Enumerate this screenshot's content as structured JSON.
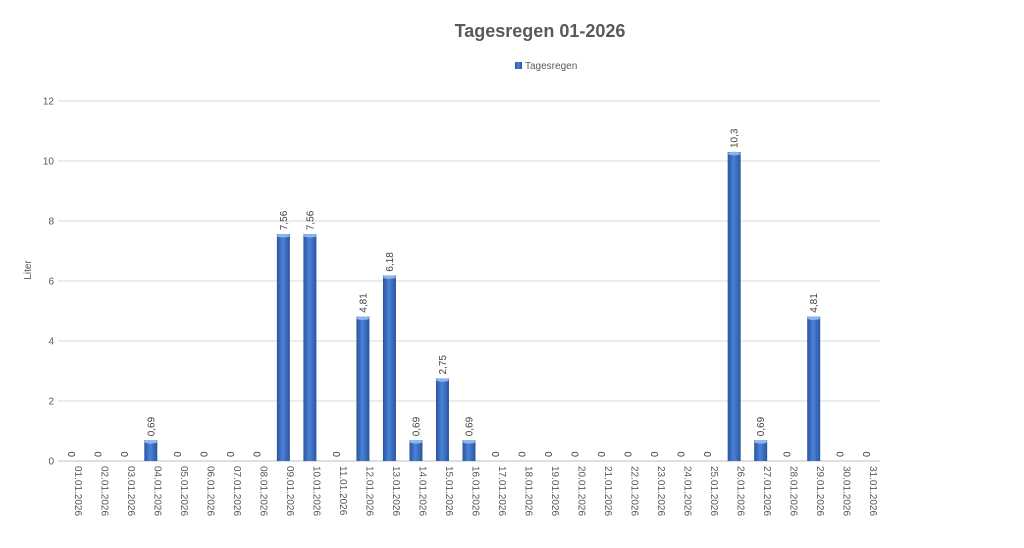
{
  "chart_data": {
    "type": "bar",
    "title": "Tagesregen 01-2026",
    "xlabel": "",
    "ylabel": "Liter",
    "ylim": [
      0,
      12
    ],
    "yticks": [
      "0",
      "2",
      "4",
      "6",
      "8",
      "10",
      "12"
    ],
    "grid": true,
    "legend_position": "top",
    "bar_color": "#3a6fc4",
    "categories": [
      "01.01.2026",
      "02.01.2026",
      "03.01.2026",
      "04.01.2026",
      "05.01.2026",
      "06.01.2026",
      "07.01.2026",
      "08.01.2026",
      "09.01.2026",
      "10.01.2026",
      "11.01.2026",
      "12.01.2026",
      "13.01.2026",
      "14.01.2026",
      "15.01.2026",
      "16.01.2026",
      "17.01.2026",
      "18.01.2026",
      "19.01.2026",
      "20.01.2026",
      "21.01.2026",
      "22.01.2026",
      "23.01.2026",
      "24.01.2026",
      "25.01.2026",
      "26.01.2026",
      "27.01.2026",
      "28.01.2026",
      "29.01.2026",
      "30.01.2026",
      "31.01.2026"
    ],
    "series": [
      {
        "name": "Tagesregen",
        "values": [
          0,
          0,
          0,
          0.69,
          0,
          0,
          0,
          0,
          7.56,
          7.56,
          0,
          4.81,
          6.18,
          0.69,
          2.75,
          0.69,
          0,
          0,
          0,
          0,
          0,
          0,
          0,
          0,
          0,
          10.3,
          0.69,
          0,
          4.81,
          0,
          0
        ],
        "labels": [
          "0",
          "0",
          "0",
          "0,69",
          "0",
          "0",
          "0",
          "0",
          "7,56",
          "7,56",
          "0",
          "4,81",
          "6,18",
          "0,69",
          "2,75",
          "0,69",
          "0",
          "0",
          "0",
          "0",
          "0",
          "0",
          "0",
          "0",
          "0",
          "10,3",
          "0,69",
          "0",
          "4,81",
          "0",
          "0"
        ]
      }
    ]
  }
}
